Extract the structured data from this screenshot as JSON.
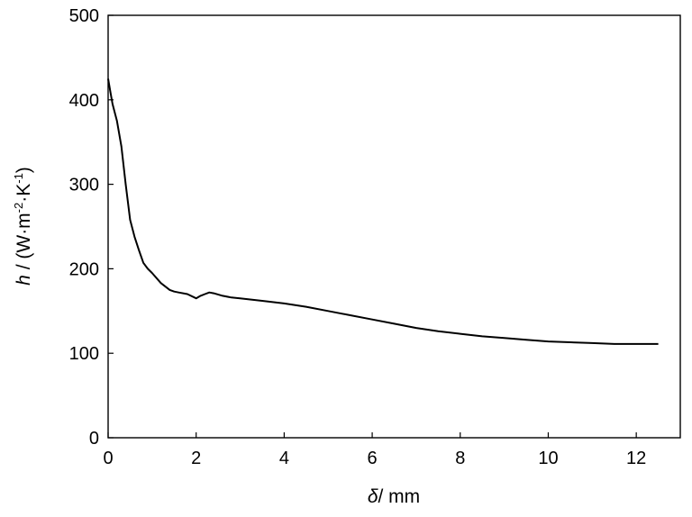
{
  "chart_data": {
    "type": "line",
    "title": "",
    "xlabel": {
      "symbol": "δ",
      "unit": "/ mm"
    },
    "ylabel": {
      "symbol": "h",
      "sep": " / (W·m",
      "exp1": "-2",
      "mid": "·K",
      "exp2": "-1",
      "close": ")"
    },
    "xlim": [
      0,
      13
    ],
    "ylim": [
      0,
      500
    ],
    "xticks": [
      0,
      2,
      4,
      6,
      8,
      10,
      12
    ],
    "yticks": [
      0,
      100,
      200,
      300,
      400,
      500
    ],
    "xtick_labels": [
      "0",
      "2",
      "4",
      "6",
      "8",
      "10",
      "12"
    ],
    "ytick_labels": [
      "0",
      "100",
      "200",
      "300",
      "400",
      "500"
    ],
    "grid": false,
    "legend": "none",
    "line_color": "#000000",
    "series": [
      {
        "x": [
          0,
          0.05,
          0.1,
          0.2,
          0.3,
          0.4,
          0.5,
          0.6,
          0.7,
          0.8,
          0.9,
          1.0,
          1.2,
          1.4,
          1.5,
          1.6,
          1.8,
          2.0,
          2.1,
          2.2,
          2.3,
          2.4,
          2.6,
          2.8,
          3.0,
          3.5,
          4.0,
          4.5,
          5.0,
          5.5,
          6.0,
          6.5,
          7.0,
          7.5,
          8.0,
          8.5,
          9.0,
          9.5,
          10.0,
          10.5,
          11.0,
          11.5,
          12.0,
          12.5
        ],
        "y": [
          425,
          410,
          395,
          375,
          345,
          300,
          258,
          238,
          222,
          207,
          200,
          195,
          183,
          175,
          173,
          172,
          170,
          165,
          168,
          170,
          172,
          171,
          168,
          166,
          165,
          162,
          159,
          155,
          150,
          145,
          140,
          135,
          130,
          126,
          123,
          120,
          118,
          116,
          114,
          113,
          112,
          111,
          111,
          111
        ]
      }
    ]
  }
}
